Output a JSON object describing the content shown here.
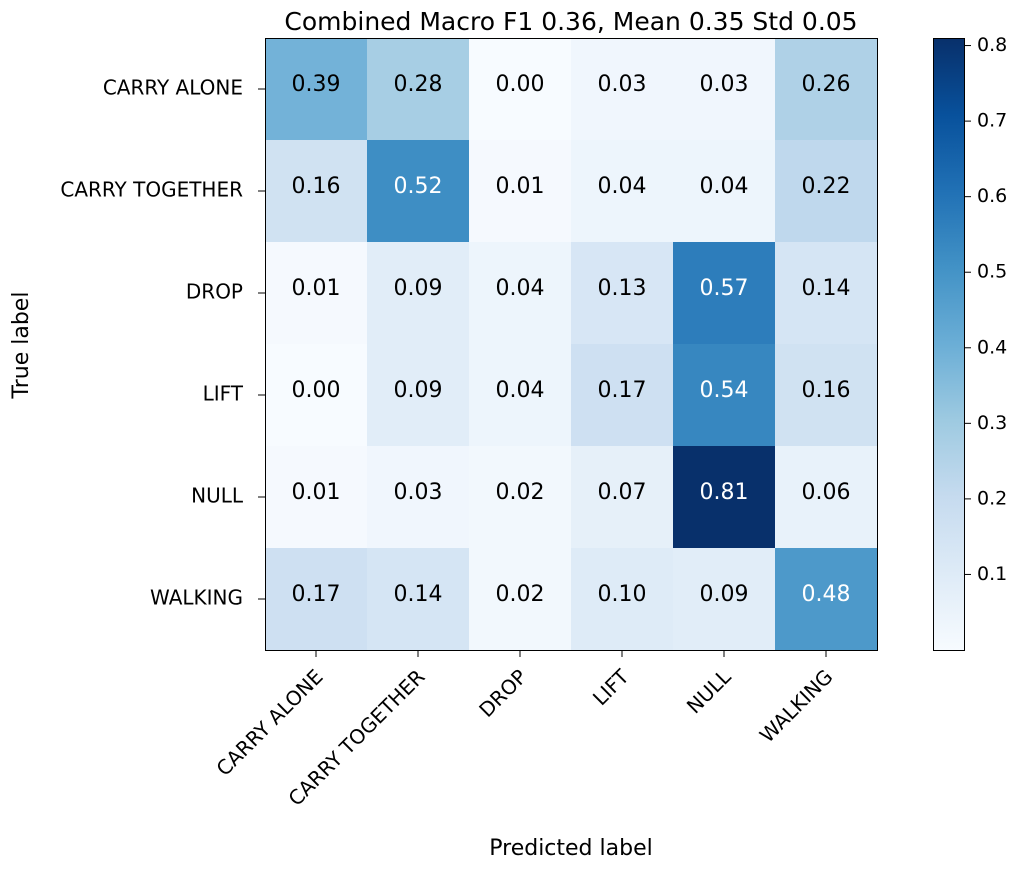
{
  "chart_data": {
    "type": "heatmap",
    "title": "Combined Macro F1 0.36, Mean 0.35 Std 0.05",
    "xlabel": "Predicted label",
    "ylabel": "True label",
    "x_categories": [
      "CARRY ALONE",
      "CARRY TOGETHER",
      "DROP",
      "LIFT",
      "NULL",
      "WALKING"
    ],
    "y_categories": [
      "CARRY ALONE",
      "CARRY TOGETHER",
      "DROP",
      "LIFT",
      "NULL",
      "WALKING"
    ],
    "values": [
      [
        0.39,
        0.28,
        0.0,
        0.03,
        0.03,
        0.26
      ],
      [
        0.16,
        0.52,
        0.01,
        0.04,
        0.04,
        0.22
      ],
      [
        0.01,
        0.09,
        0.04,
        0.13,
        0.57,
        0.14
      ],
      [
        0.0,
        0.09,
        0.04,
        0.17,
        0.54,
        0.16
      ],
      [
        0.01,
        0.03,
        0.02,
        0.07,
        0.81,
        0.06
      ],
      [
        0.17,
        0.14,
        0.02,
        0.1,
        0.09,
        0.48
      ]
    ],
    "colormap": "Blues",
    "color_low": "#f7fbff",
    "color_high": "#08306b",
    "colorbar_ticks": [
      "0.1",
      "0.2",
      "0.3",
      "0.4",
      "0.5",
      "0.6",
      "0.7",
      "0.8"
    ],
    "colorbar_range": [
      0.0,
      0.81
    ],
    "grid": false
  }
}
